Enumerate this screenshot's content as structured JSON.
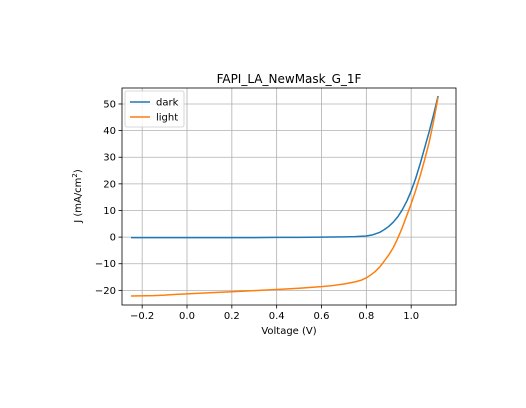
{
  "chart_data": {
    "type": "line",
    "title": "FAPI_LA_NewMask_G_1F",
    "xlabel": "Voltage (V)",
    "ylabel_main": "J (mA/cm",
    "ylabel_sup": "2",
    "ylabel_close": ")",
    "xlim": [
      -0.29,
      1.2
    ],
    "ylim": [
      -25.5,
      56
    ],
    "xticks": [
      -0.2,
      0.0,
      0.2,
      0.4,
      0.6,
      0.8,
      1.0
    ],
    "xtick_labels": [
      "−0.2",
      "0.0",
      "0.2",
      "0.4",
      "0.6",
      "0.8",
      "1.0"
    ],
    "yticks": [
      -20,
      -10,
      0,
      10,
      20,
      30,
      40,
      50
    ],
    "ytick_labels": [
      "−20",
      "−10",
      "0",
      "10",
      "20",
      "30",
      "40",
      "50"
    ],
    "grid": true,
    "legend_position": "top-left",
    "series": [
      {
        "name": "dark",
        "color": "#1f77b4",
        "x": [
          -0.25,
          -0.2,
          -0.1,
          0.0,
          0.1,
          0.2,
          0.3,
          0.4,
          0.5,
          0.6,
          0.7,
          0.75,
          0.8,
          0.83,
          0.86,
          0.88,
          0.9,
          0.92,
          0.94,
          0.96,
          0.98,
          1.0,
          1.02,
          1.04,
          1.06,
          1.08,
          1.1,
          1.12
        ],
        "y": [
          -0.2,
          -0.2,
          -0.2,
          -0.2,
          -0.2,
          -0.2,
          -0.2,
          -0.1,
          -0.1,
          0.0,
          0.1,
          0.2,
          0.4,
          0.9,
          1.8,
          2.8,
          4.0,
          5.6,
          7.6,
          10.2,
          13.4,
          17.3,
          22.0,
          27.5,
          33.5,
          39.5,
          46.0,
          53.0
        ]
      },
      {
        "name": "light",
        "color": "#ff7f0e",
        "x": [
          -0.25,
          -0.15,
          -0.1,
          -0.05,
          0.0,
          0.1,
          0.2,
          0.3,
          0.4,
          0.5,
          0.6,
          0.65,
          0.7,
          0.75,
          0.78,
          0.8,
          0.82,
          0.84,
          0.86,
          0.88,
          0.9,
          0.92,
          0.94,
          0.96,
          0.98,
          1.0,
          1.02,
          1.04,
          1.06,
          1.08,
          1.1,
          1.12
        ],
        "y": [
          -22.1,
          -22.0,
          -21.8,
          -21.5,
          -21.3,
          -20.9,
          -20.5,
          -20.1,
          -19.7,
          -19.2,
          -18.6,
          -18.2,
          -17.6,
          -16.8,
          -16.1,
          -15.3,
          -14.2,
          -12.9,
          -11.2,
          -9.0,
          -6.7,
          -4.0,
          -0.5,
          3.5,
          8.0,
          12.5,
          17.5,
          23.0,
          29.0,
          35.5,
          43.5,
          52.5
        ]
      }
    ]
  }
}
